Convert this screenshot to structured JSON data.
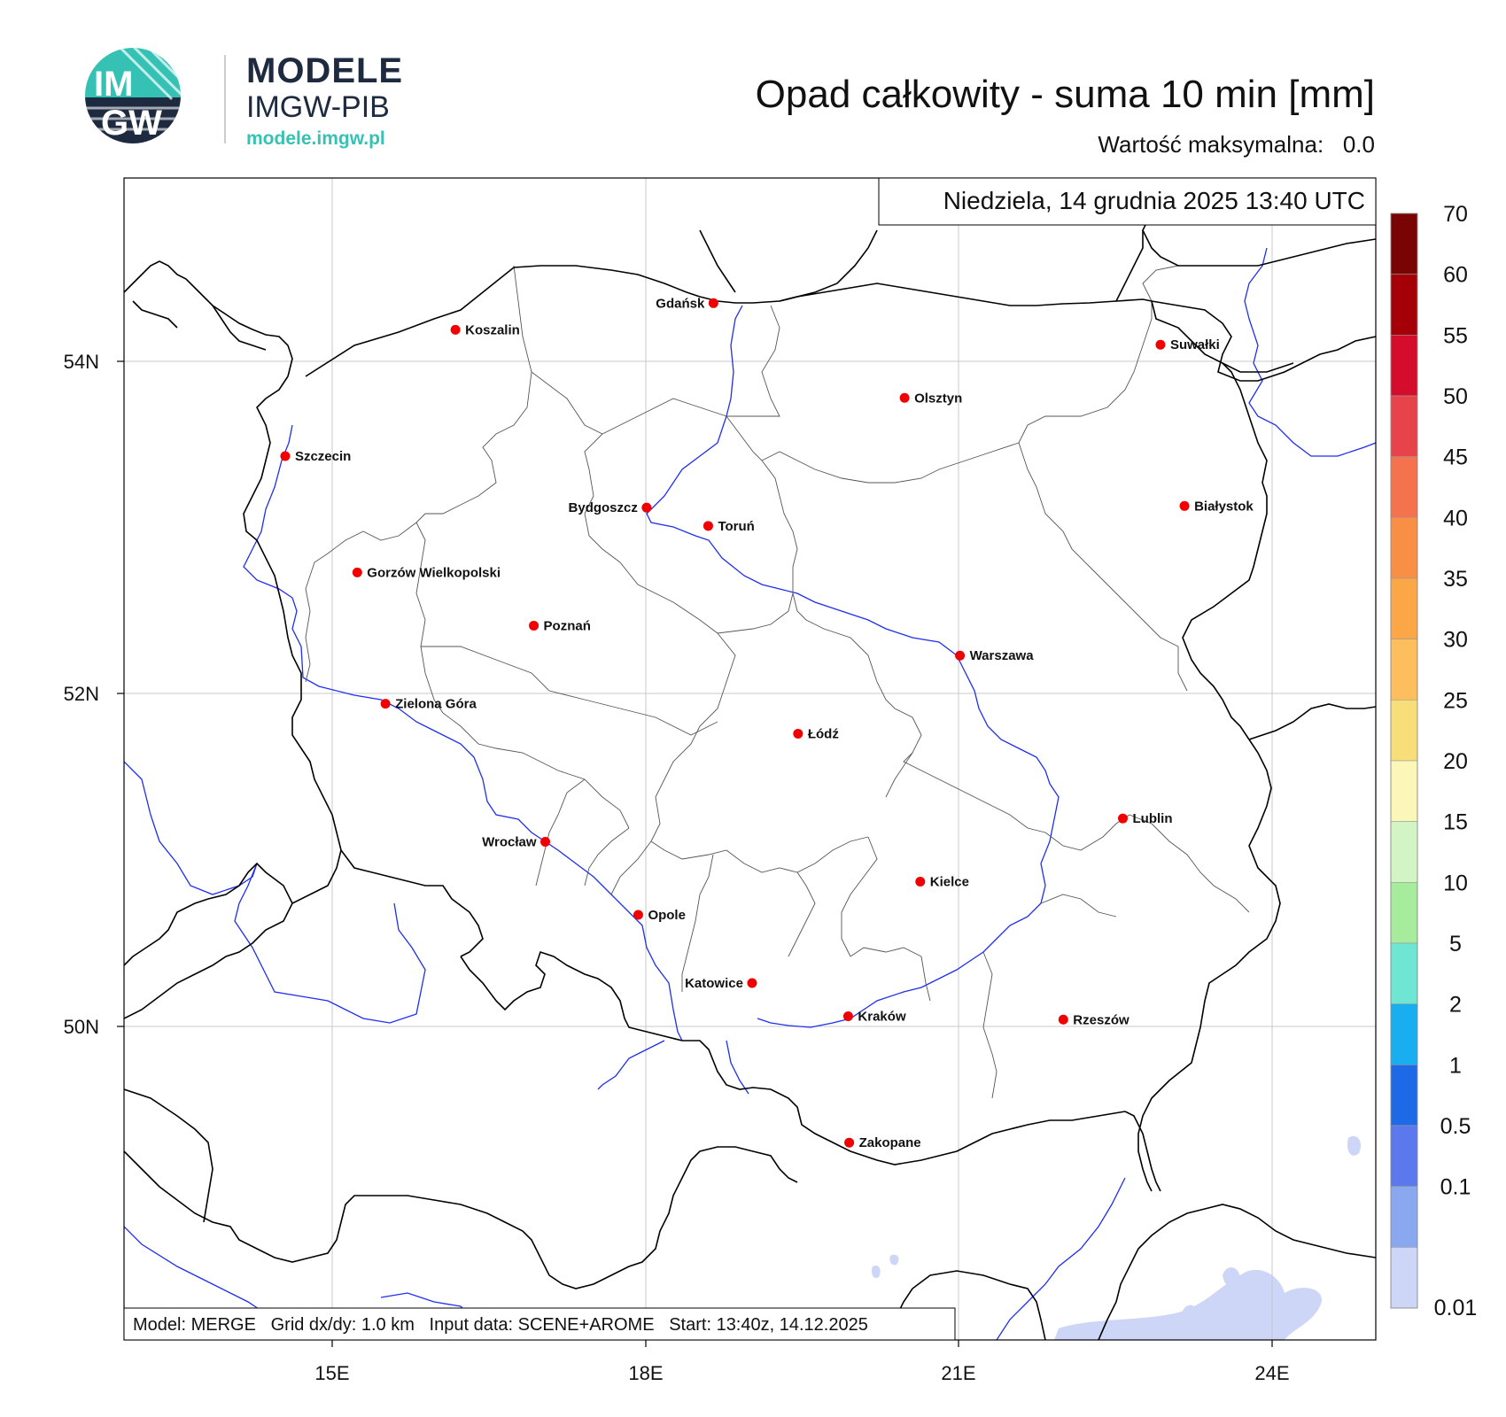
{
  "logo": {
    "badge_top": "IM",
    "badge_bottom": "GW",
    "title": "MODELE",
    "subtitle": "IMGW-PIB",
    "url": "modele.imgw.pl"
  },
  "header": {
    "title": "Opad całkowity - suma 10 min [mm]",
    "max_label": "Wartość maksymalna:",
    "max_value": "0.0"
  },
  "map": {
    "timestamp": "Niedziela, 14 grudnia 2025 13:40 UTC",
    "footer": "Model: MERGE   Grid dx/dy: 1.0 km   Input data: SCENE+AROME   Start: 13:40z, 14.12.2025",
    "lon_ticks": [
      "15E",
      "18E",
      "21E",
      "24E"
    ],
    "lat_ticks": [
      "54N",
      "52N",
      "50N"
    ],
    "cities": [
      {
        "name": "Gdańsk",
        "lon": 18.65,
        "lat": 54.35,
        "anchor": "left"
      },
      {
        "name": "Koszalin",
        "lon": 16.18,
        "lat": 54.19,
        "anchor": "right"
      },
      {
        "name": "Suwałki",
        "lon": 22.93,
        "lat": 54.1,
        "anchor": "right"
      },
      {
        "name": "Olsztyn",
        "lon": 20.48,
        "lat": 53.78,
        "anchor": "right"
      },
      {
        "name": "Szczecin",
        "lon": 14.55,
        "lat": 53.43,
        "anchor": "right"
      },
      {
        "name": "Białystok",
        "lon": 23.16,
        "lat": 53.13,
        "anchor": "right"
      },
      {
        "name": "Bydgoszcz",
        "lon": 18.01,
        "lat": 53.12,
        "anchor": "left"
      },
      {
        "name": "Toruń",
        "lon": 18.6,
        "lat": 53.01,
        "anchor": "right"
      },
      {
        "name": "Gorzów Wielkopolski",
        "lon": 15.24,
        "lat": 52.73,
        "anchor": "right"
      },
      {
        "name": "Poznań",
        "lon": 16.93,
        "lat": 52.41,
        "anchor": "right"
      },
      {
        "name": "Warszawa",
        "lon": 21.01,
        "lat": 52.23,
        "anchor": "right"
      },
      {
        "name": "Zielona Góra",
        "lon": 15.51,
        "lat": 51.94,
        "anchor": "right"
      },
      {
        "name": "Łódź",
        "lon": 19.46,
        "lat": 51.76,
        "anchor": "right"
      },
      {
        "name": "Lublin",
        "lon": 22.57,
        "lat": 51.25,
        "anchor": "right"
      },
      {
        "name": "Wrocław",
        "lon": 17.04,
        "lat": 51.11,
        "anchor": "left"
      },
      {
        "name": "Kielce",
        "lon": 20.63,
        "lat": 50.87,
        "anchor": "right"
      },
      {
        "name": "Opole",
        "lon": 17.93,
        "lat": 50.67,
        "anchor": "right"
      },
      {
        "name": "Katowice",
        "lon": 19.02,
        "lat": 50.26,
        "anchor": "left"
      },
      {
        "name": "Kraków",
        "lon": 19.94,
        "lat": 50.06,
        "anchor": "right"
      },
      {
        "name": "Rzeszów",
        "lon": 22.0,
        "lat": 50.04,
        "anchor": "right"
      },
      {
        "name": "Zakopane",
        "lon": 19.95,
        "lat": 49.3,
        "anchor": "right"
      }
    ]
  },
  "legend": {
    "labels": [
      "70",
      "60",
      "55",
      "50",
      "45",
      "40",
      "35",
      "30",
      "25",
      "20",
      "15",
      "10",
      "5",
      "2",
      "1",
      "0.5",
      "0.1",
      "0.01"
    ],
    "colors": [
      "#7a0403",
      "#a50007",
      "#d40d2c",
      "#e6444a",
      "#f4724d",
      "#f98e45",
      "#fca747",
      "#fdbf5d",
      "#f8de79",
      "#fbf7b8",
      "#d3f5c6",
      "#a6ec9c",
      "#6fe6d3",
      "#19aef0",
      "#1e6ae6",
      "#5b78ec",
      "#8aa8ef",
      "#cdd6f6"
    ]
  }
}
